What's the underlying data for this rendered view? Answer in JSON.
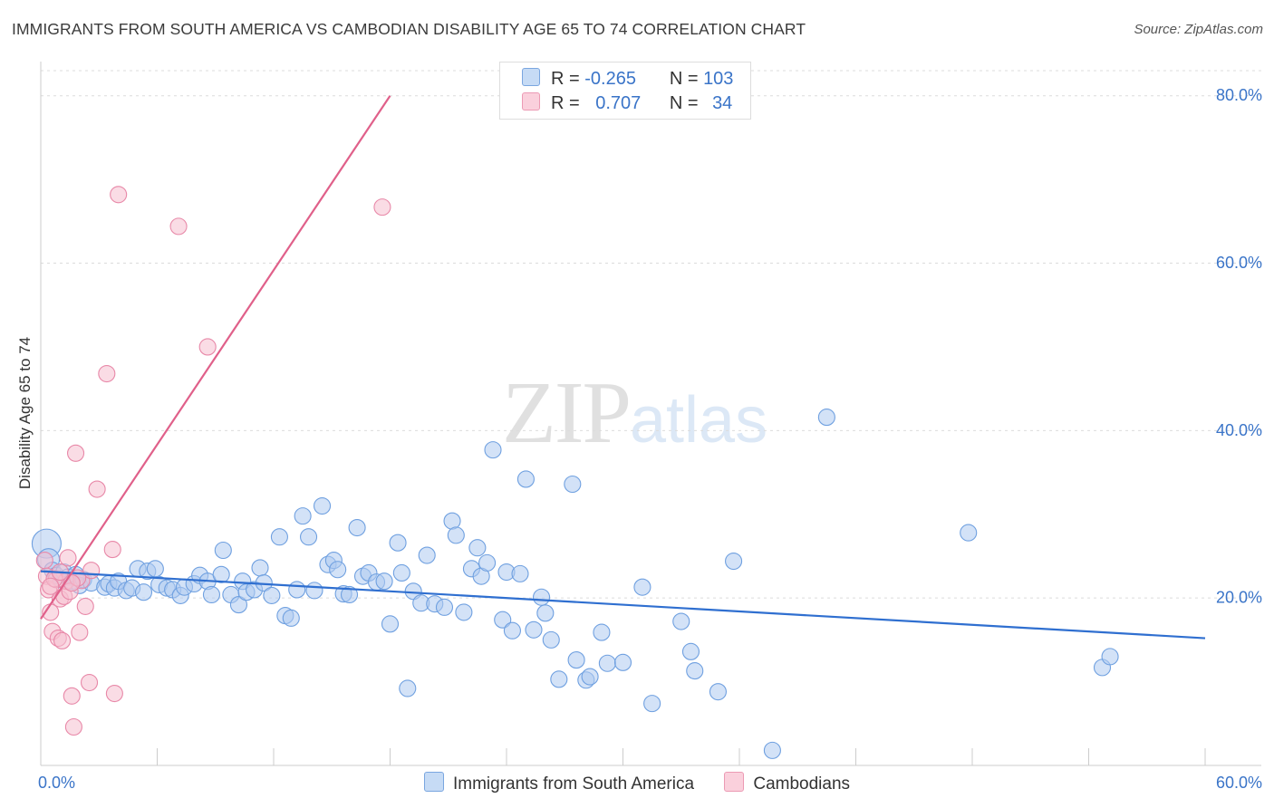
{
  "header": {
    "title": "IMMIGRANTS FROM SOUTH AMERICA VS CAMBODIAN DISABILITY AGE 65 TO 74 CORRELATION CHART",
    "source": "Source: ZipAtlas.com"
  },
  "watermark": {
    "zip": "ZIP",
    "atlas": "atlas"
  },
  "legend": {
    "rows": [
      {
        "r_label": "R =",
        "r_value": "-0.265",
        "n_label": "N =",
        "n_value": "103",
        "color": "#aecbf0"
      },
      {
        "r_label": "R =",
        "r_value": "0.707",
        "n_label": "N =",
        "n_value": "34",
        "color": "#f5c0d0"
      }
    ]
  },
  "bottom_legend": {
    "series1": "Immigrants from South America",
    "series2": "Cambodians"
  },
  "chart_data": {
    "type": "scatter",
    "title": "IMMIGRANTS FROM SOUTH AMERICA VS CAMBODIAN DISABILITY AGE 65 TO 74 CORRELATION CHART",
    "xlabel": "",
    "ylabel": "Disability Age 65 to 74",
    "xlim": [
      0,
      60
    ],
    "ylim": [
      0,
      83
    ],
    "x_tick_labels": [
      "0.0%",
      "60.0%"
    ],
    "y_tick_values": [
      20,
      40,
      60,
      80
    ],
    "y_tick_labels": [
      "20.0%",
      "40.0%",
      "60.0%",
      "80.0%"
    ],
    "grid": true,
    "series": [
      {
        "name": "Immigrants from South America",
        "color": "#6fa0e0",
        "fill": "#aecbf0",
        "line_color": "#2f6fd0",
        "trend": {
          "x": [
            0,
            60
          ],
          "y": [
            23.2,
            15.2
          ]
        },
        "points": [
          {
            "x": 0.3,
            "y": 26.5,
            "s": 16
          },
          {
            "x": 0.4,
            "y": 24.6,
            "s": 12
          },
          {
            "x": 0.6,
            "y": 23.3,
            "s": 9
          },
          {
            "x": 0.8,
            "y": 22.7,
            "s": 9
          },
          {
            "x": 1.0,
            "y": 22.2,
            "s": 9
          },
          {
            "x": 1.2,
            "y": 23.1,
            "s": 9
          },
          {
            "x": 1.4,
            "y": 22.5,
            "s": 9
          },
          {
            "x": 1.6,
            "y": 22.0,
            "s": 9
          },
          {
            "x": 1.8,
            "y": 22.8,
            "s": 9
          },
          {
            "x": 2.0,
            "y": 21.5,
            "s": 9
          },
          {
            "x": 2.2,
            "y": 22.2,
            "s": 9
          },
          {
            "x": 2.6,
            "y": 21.8,
            "s": 9
          },
          {
            "x": 3.3,
            "y": 21.3,
            "s": 9
          },
          {
            "x": 3.5,
            "y": 21.7,
            "s": 9
          },
          {
            "x": 3.8,
            "y": 21.2,
            "s": 9
          },
          {
            "x": 4.0,
            "y": 22.0,
            "s": 9
          },
          {
            "x": 4.4,
            "y": 20.9,
            "s": 9
          },
          {
            "x": 4.7,
            "y": 21.2,
            "s": 9
          },
          {
            "x": 5.0,
            "y": 23.5,
            "s": 9
          },
          {
            "x": 5.3,
            "y": 20.7,
            "s": 9
          },
          {
            "x": 5.5,
            "y": 23.2,
            "s": 9
          },
          {
            "x": 5.9,
            "y": 23.5,
            "s": 9
          },
          {
            "x": 6.1,
            "y": 21.6,
            "s": 9
          },
          {
            "x": 6.5,
            "y": 21.2,
            "s": 9
          },
          {
            "x": 6.8,
            "y": 21.0,
            "s": 9
          },
          {
            "x": 7.2,
            "y": 20.3,
            "s": 9
          },
          {
            "x": 7.4,
            "y": 21.3,
            "s": 9
          },
          {
            "x": 7.9,
            "y": 21.7,
            "s": 9
          },
          {
            "x": 8.2,
            "y": 22.7,
            "s": 9
          },
          {
            "x": 8.6,
            "y": 22.0,
            "s": 9
          },
          {
            "x": 8.8,
            "y": 20.4,
            "s": 9
          },
          {
            "x": 9.3,
            "y": 22.8,
            "s": 9
          },
          {
            "x": 9.4,
            "y": 25.7,
            "s": 9
          },
          {
            "x": 9.8,
            "y": 20.4,
            "s": 9
          },
          {
            "x": 10.2,
            "y": 19.2,
            "s": 9
          },
          {
            "x": 10.4,
            "y": 22.0,
            "s": 9
          },
          {
            "x": 10.6,
            "y": 20.7,
            "s": 9
          },
          {
            "x": 11.0,
            "y": 21.0,
            "s": 9
          },
          {
            "x": 11.3,
            "y": 23.6,
            "s": 9
          },
          {
            "x": 11.5,
            "y": 21.8,
            "s": 9
          },
          {
            "x": 11.9,
            "y": 20.3,
            "s": 9
          },
          {
            "x": 12.3,
            "y": 27.3,
            "s": 9
          },
          {
            "x": 12.6,
            "y": 17.9,
            "s": 9
          },
          {
            "x": 12.9,
            "y": 17.6,
            "s": 9
          },
          {
            "x": 13.2,
            "y": 21.0,
            "s": 9
          },
          {
            "x": 13.5,
            "y": 29.8,
            "s": 9
          },
          {
            "x": 13.8,
            "y": 27.3,
            "s": 9
          },
          {
            "x": 14.1,
            "y": 20.9,
            "s": 9
          },
          {
            "x": 14.5,
            "y": 31.0,
            "s": 9
          },
          {
            "x": 14.8,
            "y": 24.0,
            "s": 9
          },
          {
            "x": 15.1,
            "y": 24.5,
            "s": 9
          },
          {
            "x": 15.3,
            "y": 23.4,
            "s": 9
          },
          {
            "x": 15.6,
            "y": 20.5,
            "s": 9
          },
          {
            "x": 15.9,
            "y": 20.4,
            "s": 9
          },
          {
            "x": 16.3,
            "y": 28.4,
            "s": 9
          },
          {
            "x": 16.6,
            "y": 22.6,
            "s": 9
          },
          {
            "x": 16.9,
            "y": 23.0,
            "s": 9
          },
          {
            "x": 17.3,
            "y": 21.9,
            "s": 9
          },
          {
            "x": 17.7,
            "y": 22.0,
            "s": 9
          },
          {
            "x": 18.0,
            "y": 16.9,
            "s": 9
          },
          {
            "x": 18.4,
            "y": 26.6,
            "s": 9
          },
          {
            "x": 18.6,
            "y": 23.0,
            "s": 9
          },
          {
            "x": 18.9,
            "y": 9.2,
            "s": 9
          },
          {
            "x": 19.2,
            "y": 20.8,
            "s": 9
          },
          {
            "x": 19.6,
            "y": 19.4,
            "s": 9
          },
          {
            "x": 19.9,
            "y": 25.1,
            "s": 9
          },
          {
            "x": 20.3,
            "y": 19.3,
            "s": 9
          },
          {
            "x": 20.8,
            "y": 18.9,
            "s": 9
          },
          {
            "x": 21.2,
            "y": 29.2,
            "s": 9
          },
          {
            "x": 21.4,
            "y": 27.5,
            "s": 9
          },
          {
            "x": 21.8,
            "y": 18.3,
            "s": 9
          },
          {
            "x": 22.2,
            "y": 23.5,
            "s": 9
          },
          {
            "x": 22.5,
            "y": 26.0,
            "s": 9
          },
          {
            "x": 22.7,
            "y": 22.6,
            "s": 9
          },
          {
            "x": 23.0,
            "y": 24.2,
            "s": 9
          },
          {
            "x": 23.3,
            "y": 37.7,
            "s": 9
          },
          {
            "x": 23.8,
            "y": 17.4,
            "s": 9
          },
          {
            "x": 24.0,
            "y": 23.1,
            "s": 9
          },
          {
            "x": 24.3,
            "y": 16.1,
            "s": 9
          },
          {
            "x": 24.7,
            "y": 22.9,
            "s": 9
          },
          {
            "x": 25.0,
            "y": 34.2,
            "s": 9
          },
          {
            "x": 25.4,
            "y": 16.2,
            "s": 9
          },
          {
            "x": 25.8,
            "y": 20.1,
            "s": 9
          },
          {
            "x": 26.0,
            "y": 18.2,
            "s": 9
          },
          {
            "x": 26.3,
            "y": 15.0,
            "s": 9
          },
          {
            "x": 26.7,
            "y": 10.3,
            "s": 9
          },
          {
            "x": 27.4,
            "y": 33.6,
            "s": 9
          },
          {
            "x": 27.6,
            "y": 12.6,
            "s": 9
          },
          {
            "x": 28.1,
            "y": 10.2,
            "s": 9
          },
          {
            "x": 28.3,
            "y": 10.6,
            "s": 9
          },
          {
            "x": 28.9,
            "y": 15.9,
            "s": 9
          },
          {
            "x": 29.2,
            "y": 12.2,
            "s": 9
          },
          {
            "x": 30.0,
            "y": 12.3,
            "s": 9
          },
          {
            "x": 31.0,
            "y": 21.3,
            "s": 9
          },
          {
            "x": 31.5,
            "y": 7.4,
            "s": 9
          },
          {
            "x": 33.0,
            "y": 17.2,
            "s": 9
          },
          {
            "x": 33.5,
            "y": 13.6,
            "s": 9
          },
          {
            "x": 33.7,
            "y": 11.3,
            "s": 9
          },
          {
            "x": 34.9,
            "y": 8.8,
            "s": 9
          },
          {
            "x": 35.7,
            "y": 24.4,
            "s": 9
          },
          {
            "x": 37.7,
            "y": 1.8,
            "s": 9
          },
          {
            "x": 40.5,
            "y": 41.6,
            "s": 9
          },
          {
            "x": 47.8,
            "y": 27.8,
            "s": 9
          },
          {
            "x": 54.7,
            "y": 11.7,
            "s": 9
          },
          {
            "x": 55.1,
            "y": 13.0,
            "s": 9
          }
        ]
      },
      {
        "name": "Cambodians",
        "color": "#e888a8",
        "fill": "#f5c0d0",
        "line_color": "#e0608a",
        "trend": {
          "x": [
            0,
            18.0
          ],
          "y": [
            17.5,
            80.0
          ]
        },
        "points": [
          {
            "x": 0.2,
            "y": 24.5,
            "s": 9
          },
          {
            "x": 0.3,
            "y": 22.6,
            "s": 9
          },
          {
            "x": 0.4,
            "y": 21.0,
            "s": 9
          },
          {
            "x": 0.5,
            "y": 18.3,
            "s": 9
          },
          {
            "x": 0.6,
            "y": 16.0,
            "s": 9
          },
          {
            "x": 0.8,
            "y": 22.2,
            "s": 9
          },
          {
            "x": 0.9,
            "y": 15.2,
            "s": 9
          },
          {
            "x": 1.0,
            "y": 19.9,
            "s": 9
          },
          {
            "x": 1.1,
            "y": 14.9,
            "s": 9
          },
          {
            "x": 1.2,
            "y": 20.2,
            "s": 9
          },
          {
            "x": 1.3,
            "y": 22.0,
            "s": 9
          },
          {
            "x": 1.4,
            "y": 24.8,
            "s": 9
          },
          {
            "x": 1.5,
            "y": 20.8,
            "s": 9
          },
          {
            "x": 1.6,
            "y": 8.3,
            "s": 9
          },
          {
            "x": 1.7,
            "y": 4.6,
            "s": 9
          },
          {
            "x": 1.8,
            "y": 37.3,
            "s": 9
          },
          {
            "x": 2.0,
            "y": 15.9,
            "s": 9
          },
          {
            "x": 2.1,
            "y": 22.1,
            "s": 9
          },
          {
            "x": 2.3,
            "y": 19.0,
            "s": 9
          },
          {
            "x": 2.5,
            "y": 9.9,
            "s": 9
          },
          {
            "x": 2.6,
            "y": 23.3,
            "s": 9
          },
          {
            "x": 2.9,
            "y": 33.0,
            "s": 9
          },
          {
            "x": 3.4,
            "y": 46.8,
            "s": 9
          },
          {
            "x": 3.7,
            "y": 25.8,
            "s": 9
          },
          {
            "x": 3.8,
            "y": 8.6,
            "s": 9
          },
          {
            "x": 4.0,
            "y": 68.2,
            "s": 9
          },
          {
            "x": 7.1,
            "y": 64.4,
            "s": 9
          },
          {
            "x": 8.6,
            "y": 50.0,
            "s": 9
          },
          {
            "x": 17.6,
            "y": 66.7,
            "s": 9
          },
          {
            "x": 0.7,
            "y": 22.3,
            "s": 9
          },
          {
            "x": 1.9,
            "y": 22.4,
            "s": 9
          },
          {
            "x": 0.5,
            "y": 21.4,
            "s": 9
          },
          {
            "x": 1.6,
            "y": 21.8,
            "s": 9
          },
          {
            "x": 1.0,
            "y": 23.1,
            "s": 9
          }
        ]
      }
    ]
  }
}
